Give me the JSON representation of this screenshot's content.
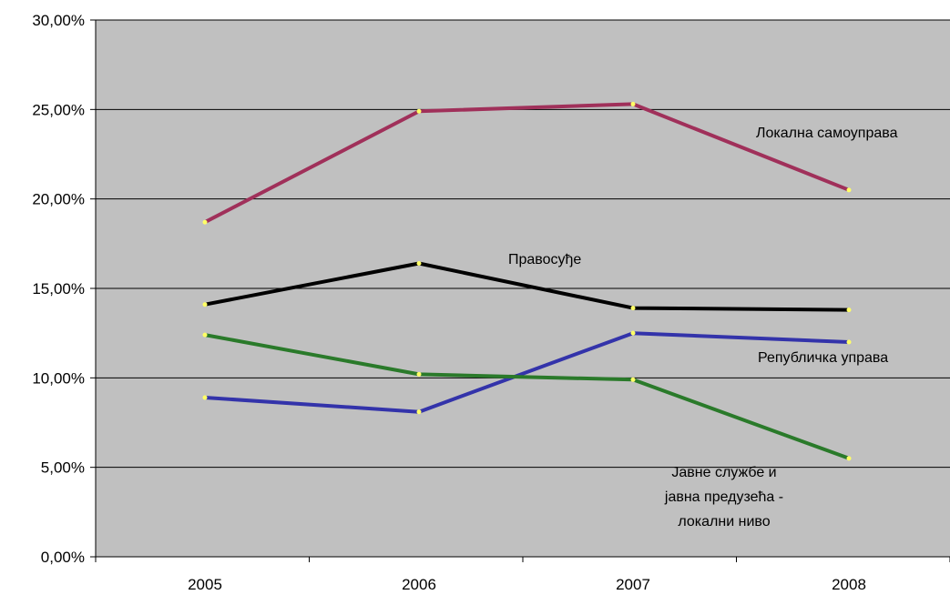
{
  "chart_data": {
    "type": "line",
    "categories": [
      "2005",
      "2006",
      "2007",
      "2008"
    ],
    "ylim": [
      0,
      30
    ],
    "yticks": [
      0,
      5,
      10,
      15,
      20,
      25,
      30
    ],
    "ytick_labels": [
      "0,00%",
      "5,00%",
      "10,00%",
      "15,00%",
      "20,00%",
      "25,00%",
      "30,00%"
    ],
    "grid": true,
    "plot_background": "#c0c0c0",
    "series": [
      {
        "name": "Локална самоуправа",
        "values": [
          18.7,
          24.9,
          25.3,
          20.5
        ],
        "color": "#a0305a"
      },
      {
        "name": "Правосуђе",
        "values": [
          14.1,
          16.4,
          13.9,
          13.8
        ],
        "color": "#000000"
      },
      {
        "name": "Републичка управа",
        "values": [
          8.9,
          8.1,
          12.5,
          12.0
        ],
        "color": "#3333aa"
      },
      {
        "name": "Јавне службе и јавна предузећа - локални ниво",
        "values": [
          12.4,
          10.2,
          9.9,
          5.5
        ],
        "color": "#2a7a2a"
      }
    ],
    "annotations": [
      "Локална самоуправа",
      "Правосуђе",
      "Републичка управа",
      "Јавне службе и",
      "јавна предузећа -",
      "локални ниво"
    ]
  }
}
